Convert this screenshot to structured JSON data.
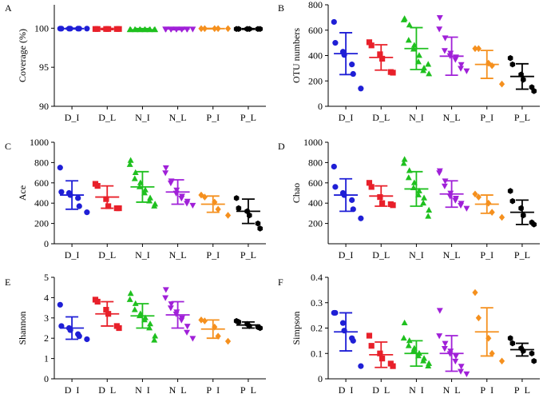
{
  "colors": {
    "D_I": "#1f1fd6",
    "D_L": "#e8202a",
    "N_I": "#1fc01f",
    "N_L": "#a020d8",
    "P_I": "#f5901e",
    "P_L": "#000000"
  },
  "chart_data": [
    {
      "type": "scatter",
      "panel_label": "A",
      "ylabel": "Coverage (%)",
      "ylim": [
        90,
        103
      ],
      "yticks": [
        90,
        95,
        100
      ],
      "categories": [
        "D_I",
        "D_L",
        "N_I",
        "N_L",
        "P_I",
        "P_L"
      ],
      "series": [
        {
          "name": "D_I",
          "marker": "circle",
          "points": [
            99.95,
            99.95,
            99.95,
            99.95,
            99.95,
            99.95,
            99.95
          ],
          "mean": 99.95,
          "sd": 0.05
        },
        {
          "name": "D_L",
          "marker": "square",
          "points": [
            99.9,
            99.9,
            99.9,
            99.9,
            99.9,
            99.9
          ],
          "mean": 99.9,
          "sd": 0.08
        },
        {
          "name": "N_I",
          "marker": "triangle",
          "points": [
            99.8,
            99.8,
            99.8,
            99.8,
            99.8,
            99.8,
            99.8,
            99.8,
            99.8,
            99.8,
            99.8,
            99.8
          ],
          "mean": 99.8,
          "sd": 0.15
        },
        {
          "name": "N_L",
          "marker": "triangle-down",
          "points": [
            99.9,
            99.9,
            99.9,
            99.9,
            99.9,
            99.9,
            99.9,
            99.9,
            99.9,
            99.9,
            99.9
          ],
          "mean": 99.9,
          "sd": 0.1
        },
        {
          "name": "P_I",
          "marker": "diamond",
          "points": [
            99.95,
            99.95,
            99.95,
            99.95,
            99.95
          ],
          "mean": 99.95,
          "sd": 0.03
        },
        {
          "name": "P_L",
          "marker": "hexagon",
          "points": [
            99.9,
            99.9,
            99.9,
            99.9,
            99.9,
            99.9
          ],
          "mean": 99.9,
          "sd": 0.05
        }
      ]
    },
    {
      "type": "scatter",
      "panel_label": "B",
      "ylabel": "OTU numbers",
      "ylim": [
        0,
        800
      ],
      "yticks": [
        0,
        200,
        400,
        600,
        800
      ],
      "categories": [
        "D_I",
        "D_L",
        "N_I",
        "N_L",
        "P_I",
        "P_L"
      ],
      "series": [
        {
          "name": "D_I",
          "marker": "circle",
          "points": [
            665,
            500,
            430,
            405,
            330,
            255,
            140
          ],
          "mean": 415,
          "sd": 165
        },
        {
          "name": "D_L",
          "marker": "square",
          "points": [
            505,
            480,
            410,
            375,
            270,
            265
          ],
          "mean": 385,
          "sd": 100
        },
        {
          "name": "N_I",
          "marker": "triangle",
          "points": [
            690,
            680,
            640,
            520,
            480,
            450,
            400,
            350,
            300,
            280,
            255,
            330
          ],
          "mean": 455,
          "sd": 165
        },
        {
          "name": "N_L",
          "marker": "triangle-down",
          "points": [
            700,
            610,
            540,
            440,
            420,
            400,
            390,
            370,
            330,
            300,
            280
          ],
          "mean": 395,
          "sd": 150
        },
        {
          "name": "P_I",
          "marker": "diamond",
          "points": [
            455,
            455,
            340,
            320,
            175
          ],
          "mean": 330,
          "sd": 110
        },
        {
          "name": "P_L",
          "marker": "hexagon",
          "points": [
            380,
            330,
            250,
            210,
            150,
            120
          ],
          "mean": 235,
          "sd": 100
        }
      ]
    },
    {
      "type": "scatter",
      "panel_label": "C",
      "ylabel": "Ace",
      "ylim": [
        0,
        1000
      ],
      "yticks": [
        0,
        200,
        400,
        600,
        800,
        1000
      ],
      "categories": [
        "D_I",
        "D_L",
        "N_I",
        "N_L",
        "P_I",
        "P_L"
      ],
      "series": [
        {
          "name": "D_I",
          "marker": "circle",
          "points": [
            750,
            510,
            500,
            480,
            450,
            370,
            310
          ],
          "mean": 480,
          "sd": 140
        },
        {
          "name": "D_L",
          "marker": "square",
          "points": [
            590,
            570,
            440,
            370,
            350,
            350
          ],
          "mean": 460,
          "sd": 110
        },
        {
          "name": "N_I",
          "marker": "triangle",
          "points": [
            820,
            780,
            700,
            640,
            600,
            560,
            530,
            500,
            450,
            420,
            390,
            370
          ],
          "mean": 560,
          "sd": 150
        },
        {
          "name": "N_L",
          "marker": "triangle-down",
          "points": [
            750,
            700,
            620,
            600,
            530,
            500,
            470,
            450,
            420,
            400,
            380
          ],
          "mean": 510,
          "sd": 120
        },
        {
          "name": "P_I",
          "marker": "diamond",
          "points": [
            480,
            460,
            410,
            340,
            280
          ],
          "mean": 390,
          "sd": 80
        },
        {
          "name": "P_L",
          "marker": "hexagon",
          "points": [
            450,
            350,
            320,
            280,
            200,
            150
          ],
          "mean": 320,
          "sd": 120
        }
      ]
    },
    {
      "type": "scatter",
      "panel_label": "D",
      "ylabel": "Chao",
      "ylim": [
        0,
        1000
      ],
      "yticks": [
        200,
        400,
        600,
        800,
        1000
      ],
      "categories": [
        "D_I",
        "D_L",
        "N_I",
        "N_L",
        "P_I",
        "P_L"
      ],
      "series": [
        {
          "name": "D_I",
          "marker": "circle",
          "points": [
            760,
            560,
            500,
            480,
            430,
            340,
            250
          ],
          "mean": 480,
          "sd": 160
        },
        {
          "name": "D_L",
          "marker": "square",
          "points": [
            600,
            560,
            460,
            400,
            390,
            380
          ],
          "mean": 470,
          "sd": 100
        },
        {
          "name": "N_I",
          "marker": "triangle",
          "points": [
            830,
            790,
            720,
            650,
            600,
            550,
            520,
            480,
            450,
            400,
            330,
            270
          ],
          "mean": 540,
          "sd": 170
        },
        {
          "name": "N_L",
          "marker": "triangle-down",
          "points": [
            720,
            700,
            620,
            570,
            500,
            470,
            450,
            430,
            400,
            380,
            350
          ],
          "mean": 490,
          "sd": 130
        },
        {
          "name": "P_I",
          "marker": "diamond",
          "points": [
            490,
            460,
            400,
            310,
            260
          ],
          "mean": 390,
          "sd": 90
        },
        {
          "name": "P_L",
          "marker": "hexagon",
          "points": [
            520,
            420,
            350,
            280,
            210,
            190
          ],
          "mean": 310,
          "sd": 120
        }
      ]
    },
    {
      "type": "scatter",
      "panel_label": "E",
      "ylabel": "Shannon",
      "ylim": [
        0,
        5
      ],
      "yticks": [
        0,
        1,
        2,
        3,
        4,
        5
      ],
      "categories": [
        "D_I",
        "D_L",
        "N_I",
        "N_L",
        "P_I",
        "P_L"
      ],
      "series": [
        {
          "name": "D_I",
          "marker": "circle",
          "points": [
            3.65,
            2.6,
            2.5,
            2.4,
            2.2,
            2.1,
            1.95
          ],
          "mean": 2.5,
          "sd": 0.55
        },
        {
          "name": "D_L",
          "marker": "square",
          "points": [
            3.9,
            3.8,
            3.4,
            3.2,
            2.6,
            2.5
          ],
          "mean": 3.2,
          "sd": 0.6
        },
        {
          "name": "N_I",
          "marker": "triangle",
          "points": [
            4.2,
            3.9,
            3.7,
            3.4,
            3.2,
            3.1,
            3.0,
            2.9,
            2.7,
            2.5,
            2.1,
            1.9
          ],
          "mean": 3.1,
          "sd": 0.6
        },
        {
          "name": "N_L",
          "marker": "triangle-down",
          "points": [
            4.4,
            4.0,
            3.7,
            3.5,
            3.3,
            3.2,
            3.0,
            2.9,
            2.6,
            2.3,
            2.0
          ],
          "mean": 3.15,
          "sd": 0.65
        },
        {
          "name": "P_I",
          "marker": "diamond",
          "points": [
            2.9,
            2.85,
            2.55,
            2.1,
            1.85
          ],
          "mean": 2.45,
          "sd": 0.45
        },
        {
          "name": "P_L",
          "marker": "hexagon",
          "points": [
            2.85,
            2.8,
            2.7,
            2.6,
            2.55,
            2.5
          ],
          "mean": 2.65,
          "sd": 0.15
        }
      ]
    },
    {
      "type": "scatter",
      "panel_label": "F",
      "ylabel": "Simpson",
      "ylim": [
        0,
        0.4
      ],
      "yticks": [
        0,
        0.1,
        0.2,
        0.3,
        0.4
      ],
      "categories": [
        "D_I",
        "D_L",
        "N_I",
        "N_L",
        "P_I",
        "P_L"
      ],
      "series": [
        {
          "name": "D_I",
          "marker": "circle",
          "points": [
            0.26,
            0.26,
            0.22,
            0.19,
            0.16,
            0.15,
            0.05
          ],
          "mean": 0.185,
          "sd": 0.075
        },
        {
          "name": "D_L",
          "marker": "square",
          "points": [
            0.17,
            0.13,
            0.1,
            0.08,
            0.06,
            0.05
          ],
          "mean": 0.095,
          "sd": 0.05
        },
        {
          "name": "N_I",
          "marker": "triangle",
          "points": [
            0.22,
            0.16,
            0.15,
            0.13,
            0.12,
            0.11,
            0.1,
            0.09,
            0.08,
            0.07,
            0.06,
            0.05
          ],
          "mean": 0.1,
          "sd": 0.05
        },
        {
          "name": "N_L",
          "marker": "triangle-down",
          "points": [
            0.27,
            0.17,
            0.14,
            0.12,
            0.11,
            0.1,
            0.09,
            0.07,
            0.05,
            0.03,
            0.02
          ],
          "mean": 0.1,
          "sd": 0.07
        },
        {
          "name": "P_I",
          "marker": "diamond",
          "points": [
            0.34,
            0.24,
            0.16,
            0.1,
            0.07
          ],
          "mean": 0.185,
          "sd": 0.095
        },
        {
          "name": "P_L",
          "marker": "hexagon",
          "points": [
            0.16,
            0.14,
            0.12,
            0.11,
            0.1,
            0.07
          ],
          "mean": 0.115,
          "sd": 0.025
        }
      ]
    }
  ]
}
